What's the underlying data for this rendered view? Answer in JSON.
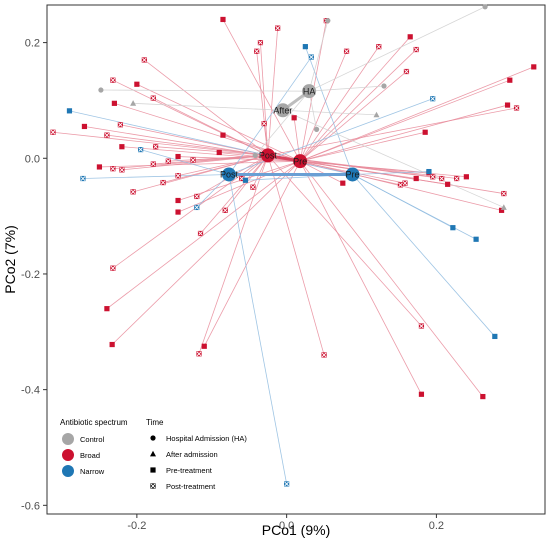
{
  "chart_data": {
    "type": "scatter",
    "title": "",
    "xlabel": "PCo1 (9%)",
    "ylabel": "PCo2 (7%)",
    "xlim": [
      -0.32,
      0.345
    ],
    "ylim": [
      -0.615,
      0.265
    ],
    "x_ticks": [
      -0.2,
      0.0,
      0.2
    ],
    "x_tick_labels": [
      "-0.2",
      "0.0",
      "0.2"
    ],
    "y_ticks": [
      -0.6,
      -0.4,
      -0.2,
      0.0,
      0.2
    ],
    "y_tick_labels": [
      "-0.6",
      "-0.4",
      "-0.2",
      "0.0",
      "0.2"
    ],
    "grid": false,
    "legend_position": "bottom-left",
    "legend": {
      "spectrum_title": "Antibiotic spectrum",
      "spectrum_items": [
        {
          "label": "Control",
          "color": "#a6a6a6"
        },
        {
          "label": "Broad",
          "color": "#cc1130"
        },
        {
          "label": "Narrow",
          "color": "#1f77b4"
        }
      ],
      "time_title": "Time",
      "time_items": [
        {
          "label": "Hospital Admission (HA)",
          "shape": "circle"
        },
        {
          "label": "After admission",
          "shape": "triangle"
        },
        {
          "label": "Pre-treatment",
          "shape": "square"
        },
        {
          "label": "Post-treatment",
          "shape": "square-x"
        }
      ]
    },
    "colors": {
      "Control": "#a6a6a6",
      "Broad": "#cc1130",
      "Narrow": "#1f77b4",
      "centroid_line_narrow": "#6a9fd4",
      "centroid_line_control": "#bdbdbd"
    },
    "centroids": [
      {
        "label": "HA",
        "group": "Control",
        "x": 0.03,
        "y": 0.116
      },
      {
        "label": "After",
        "group": "Control",
        "x": -0.005,
        "y": 0.083
      },
      {
        "label": "Post",
        "group": "Broad",
        "x": -0.025,
        "y": 0.005
      },
      {
        "label": "Pre",
        "group": "Broad",
        "x": 0.018,
        "y": -0.005
      },
      {
        "label": "Post",
        "group": "Narrow",
        "x": -0.077,
        "y": -0.028
      },
      {
        "label": "Pre",
        "group": "Narrow",
        "x": 0.088,
        "y": -0.028
      }
    ],
    "points": [
      {
        "x": -0.085,
        "y": 0.24,
        "group": "Broad",
        "shape": "square",
        "centroid": 3
      },
      {
        "x": -0.012,
        "y": 0.225,
        "group": "Broad",
        "shape": "square-x",
        "centroid": 2
      },
      {
        "x": 0.053,
        "y": 0.238,
        "group": "Broad",
        "shape": "square-x",
        "centroid": 3
      },
      {
        "x": 0.165,
        "y": 0.21,
        "group": "Broad",
        "shape": "square",
        "centroid": 3
      },
      {
        "x": 0.123,
        "y": 0.193,
        "group": "Broad",
        "shape": "square-x",
        "centroid": 3
      },
      {
        "x": -0.035,
        "y": 0.2,
        "group": "Broad",
        "shape": "square-x",
        "centroid": 2
      },
      {
        "x": 0.08,
        "y": 0.185,
        "group": "Broad",
        "shape": "square-x",
        "centroid": 3
      },
      {
        "x": -0.04,
        "y": 0.185,
        "group": "Broad",
        "shape": "square-x",
        "centroid": 2
      },
      {
        "x": 0.173,
        "y": 0.188,
        "group": "Broad",
        "shape": "square-x",
        "centroid": 3
      },
      {
        "x": 0.16,
        "y": 0.15,
        "group": "Broad",
        "shape": "square-x",
        "centroid": 3
      },
      {
        "x": -0.19,
        "y": 0.17,
        "group": "Broad",
        "shape": "square-x",
        "centroid": 2
      },
      {
        "x": -0.232,
        "y": 0.135,
        "group": "Broad",
        "shape": "square-x",
        "centroid": 2
      },
      {
        "x": -0.2,
        "y": 0.128,
        "group": "Broad",
        "shape": "square",
        "centroid": 3
      },
      {
        "x": -0.178,
        "y": 0.104,
        "group": "Broad",
        "shape": "square-x",
        "centroid": 2
      },
      {
        "x": -0.23,
        "y": 0.095,
        "group": "Broad",
        "shape": "square",
        "centroid": 3
      },
      {
        "x": 0.33,
        "y": 0.158,
        "group": "Broad",
        "shape": "square",
        "centroid": 3
      },
      {
        "x": 0.298,
        "y": 0.135,
        "group": "Broad",
        "shape": "square",
        "centroid": 3
      },
      {
        "x": 0.295,
        "y": 0.092,
        "group": "Broad",
        "shape": "square",
        "centroid": 3
      },
      {
        "x": 0.307,
        "y": 0.087,
        "group": "Broad",
        "shape": "square-x",
        "centroid": 2
      },
      {
        "x": -0.27,
        "y": 0.055,
        "group": "Broad",
        "shape": "square",
        "centroid": 3
      },
      {
        "x": -0.222,
        "y": 0.058,
        "group": "Broad",
        "shape": "square-x",
        "centroid": 2
      },
      {
        "x": -0.312,
        "y": 0.045,
        "group": "Broad",
        "shape": "square-x",
        "centroid": 2
      },
      {
        "x": -0.24,
        "y": 0.04,
        "group": "Broad",
        "shape": "square-x",
        "centroid": 2
      },
      {
        "x": -0.085,
        "y": 0.04,
        "group": "Broad",
        "shape": "square",
        "centroid": 3
      },
      {
        "x": 0.01,
        "y": 0.07,
        "group": "Broad",
        "shape": "square",
        "centroid": 3
      },
      {
        "x": -0.03,
        "y": 0.06,
        "group": "Broad",
        "shape": "square-x",
        "centroid": 2
      },
      {
        "x": 0.185,
        "y": 0.045,
        "group": "Broad",
        "shape": "square",
        "centroid": 3
      },
      {
        "x": -0.22,
        "y": 0.02,
        "group": "Broad",
        "shape": "square",
        "centroid": 3
      },
      {
        "x": -0.175,
        "y": 0.02,
        "group": "Broad",
        "shape": "square-x",
        "centroid": 2
      },
      {
        "x": -0.145,
        "y": 0.003,
        "group": "Broad",
        "shape": "square",
        "centroid": 3
      },
      {
        "x": -0.158,
        "y": -0.005,
        "group": "Broad",
        "shape": "square-x",
        "centroid": 2
      },
      {
        "x": -0.125,
        "y": -0.003,
        "group": "Broad",
        "shape": "square-x",
        "centroid": 2
      },
      {
        "x": -0.09,
        "y": 0.01,
        "group": "Broad",
        "shape": "square",
        "centroid": 3
      },
      {
        "x": -0.25,
        "y": -0.015,
        "group": "Broad",
        "shape": "square",
        "centroid": 3
      },
      {
        "x": -0.232,
        "y": -0.018,
        "group": "Broad",
        "shape": "square-x",
        "centroid": 2
      },
      {
        "x": -0.22,
        "y": -0.02,
        "group": "Broad",
        "shape": "square-x",
        "centroid": 2
      },
      {
        "x": -0.178,
        "y": -0.01,
        "group": "Broad",
        "shape": "square-x",
        "centroid": 2
      },
      {
        "x": -0.145,
        "y": -0.03,
        "group": "Broad",
        "shape": "square-x",
        "centroid": 2
      },
      {
        "x": -0.06,
        "y": -0.035,
        "group": "Broad",
        "shape": "square-x",
        "centroid": 2
      },
      {
        "x": 0.19,
        "y": -0.025,
        "group": "Broad",
        "shape": "square",
        "centroid": 3
      },
      {
        "x": 0.24,
        "y": -0.032,
        "group": "Broad",
        "shape": "square",
        "centroid": 3
      },
      {
        "x": 0.158,
        "y": -0.043,
        "group": "Broad",
        "shape": "square-x",
        "centroid": 2
      },
      {
        "x": 0.173,
        "y": -0.035,
        "group": "Broad",
        "shape": "square",
        "centroid": 3
      },
      {
        "x": 0.195,
        "y": -0.032,
        "group": "Broad",
        "shape": "square-x",
        "centroid": 2
      },
      {
        "x": 0.207,
        "y": -0.035,
        "group": "Broad",
        "shape": "square-x",
        "centroid": 2
      },
      {
        "x": 0.227,
        "y": -0.035,
        "group": "Broad",
        "shape": "square-x",
        "centroid": 2
      },
      {
        "x": -0.165,
        "y": -0.042,
        "group": "Broad",
        "shape": "square-x",
        "centroid": 2
      },
      {
        "x": -0.045,
        "y": -0.05,
        "group": "Broad",
        "shape": "square-x",
        "centroid": 2
      },
      {
        "x": 0.152,
        "y": -0.046,
        "group": "Broad",
        "shape": "square-x",
        "centroid": 2
      },
      {
        "x": 0.215,
        "y": -0.045,
        "group": "Broad",
        "shape": "square",
        "centroid": 3
      },
      {
        "x": 0.075,
        "y": -0.043,
        "group": "Broad",
        "shape": "square",
        "centroid": 3
      },
      {
        "x": -0.12,
        "y": -0.066,
        "group": "Broad",
        "shape": "square-x",
        "centroid": 2
      },
      {
        "x": -0.205,
        "y": -0.058,
        "group": "Broad",
        "shape": "square-x",
        "centroid": 2
      },
      {
        "x": -0.145,
        "y": -0.073,
        "group": "Broad",
        "shape": "square",
        "centroid": 3
      },
      {
        "x": 0.29,
        "y": -0.061,
        "group": "Broad",
        "shape": "square-x",
        "centroid": 2
      },
      {
        "x": -0.082,
        "y": -0.09,
        "group": "Broad",
        "shape": "square-x",
        "centroid": 2
      },
      {
        "x": -0.145,
        "y": -0.093,
        "group": "Broad",
        "shape": "square",
        "centroid": 3
      },
      {
        "x": 0.287,
        "y": -0.09,
        "group": "Broad",
        "shape": "square",
        "centroid": 3
      },
      {
        "x": -0.115,
        "y": -0.13,
        "group": "Broad",
        "shape": "square-x",
        "centroid": 2
      },
      {
        "x": -0.232,
        "y": -0.19,
        "group": "Broad",
        "shape": "square-x",
        "centroid": 2
      },
      {
        "x": -0.24,
        "y": -0.26,
        "group": "Broad",
        "shape": "square",
        "centroid": 3
      },
      {
        "x": 0.18,
        "y": -0.29,
        "group": "Broad",
        "shape": "square-x",
        "centroid": 2
      },
      {
        "x": -0.233,
        "y": -0.322,
        "group": "Broad",
        "shape": "square",
        "centroid": 3
      },
      {
        "x": -0.117,
        "y": -0.338,
        "group": "Broad",
        "shape": "square-x",
        "centroid": 2
      },
      {
        "x": -0.11,
        "y": -0.325,
        "group": "Broad",
        "shape": "square",
        "centroid": 3
      },
      {
        "x": 0.05,
        "y": -0.34,
        "group": "Broad",
        "shape": "square-x",
        "centroid": 2
      },
      {
        "x": 0.18,
        "y": -0.408,
        "group": "Broad",
        "shape": "square",
        "centroid": 3
      },
      {
        "x": 0.262,
        "y": -0.412,
        "group": "Broad",
        "shape": "square",
        "centroid": 3
      },
      {
        "x": 0.025,
        "y": 0.193,
        "group": "Narrow",
        "shape": "square",
        "centroid": 5
      },
      {
        "x": 0.033,
        "y": 0.175,
        "group": "Narrow",
        "shape": "square-x",
        "centroid": 4
      },
      {
        "x": 0.195,
        "y": 0.103,
        "group": "Narrow",
        "shape": "square-x",
        "centroid": 4
      },
      {
        "x": -0.29,
        "y": 0.082,
        "group": "Narrow",
        "shape": "square",
        "centroid": 5
      },
      {
        "x": -0.195,
        "y": 0.015,
        "group": "Narrow",
        "shape": "square-x",
        "centroid": 4
      },
      {
        "x": -0.272,
        "y": -0.035,
        "group": "Narrow",
        "shape": "square-x",
        "centroid": 4
      },
      {
        "x": -0.055,
        "y": -0.038,
        "group": "Narrow",
        "shape": "square",
        "centroid": 5
      },
      {
        "x": 0.19,
        "y": -0.023,
        "group": "Narrow",
        "shape": "square",
        "centroid": 5
      },
      {
        "x": -0.12,
        "y": -0.085,
        "group": "Narrow",
        "shape": "square-x",
        "centroid": 4
      },
      {
        "x": 0.222,
        "y": -0.12,
        "group": "Narrow",
        "shape": "square",
        "centroid": 5
      },
      {
        "x": 0.253,
        "y": -0.14,
        "group": "Narrow",
        "shape": "square",
        "centroid": 5
      },
      {
        "x": 0.278,
        "y": -0.308,
        "group": "Narrow",
        "shape": "square",
        "centroid": 5
      },
      {
        "x": 0.0,
        "y": -0.563,
        "group": "Narrow",
        "shape": "square-x",
        "centroid": 4
      },
      {
        "x": 0.265,
        "y": 0.262,
        "group": "Control",
        "shape": "circle",
        "centroid": 0
      },
      {
        "x": 0.055,
        "y": 0.238,
        "group": "Control",
        "shape": "circle",
        "centroid": 0
      },
      {
        "x": -0.248,
        "y": 0.118,
        "group": "Control",
        "shape": "circle",
        "centroid": 0
      },
      {
        "x": 0.13,
        "y": 0.125,
        "group": "Control",
        "shape": "circle",
        "centroid": 0
      },
      {
        "x": 0.04,
        "y": 0.05,
        "group": "Control",
        "shape": "circle",
        "centroid": 0
      },
      {
        "x": -0.205,
        "y": 0.095,
        "group": "Control",
        "shape": "triangle",
        "centroid": 1
      },
      {
        "x": 0.12,
        "y": 0.075,
        "group": "Control",
        "shape": "triangle",
        "centroid": 1
      },
      {
        "x": 0.29,
        "y": -0.085,
        "group": "Control",
        "shape": "triangle",
        "centroid": 1
      },
      {
        "x": -0.042,
        "y": 0.005,
        "group": "Control",
        "shape": "circle",
        "centroid": 0
      }
    ]
  }
}
